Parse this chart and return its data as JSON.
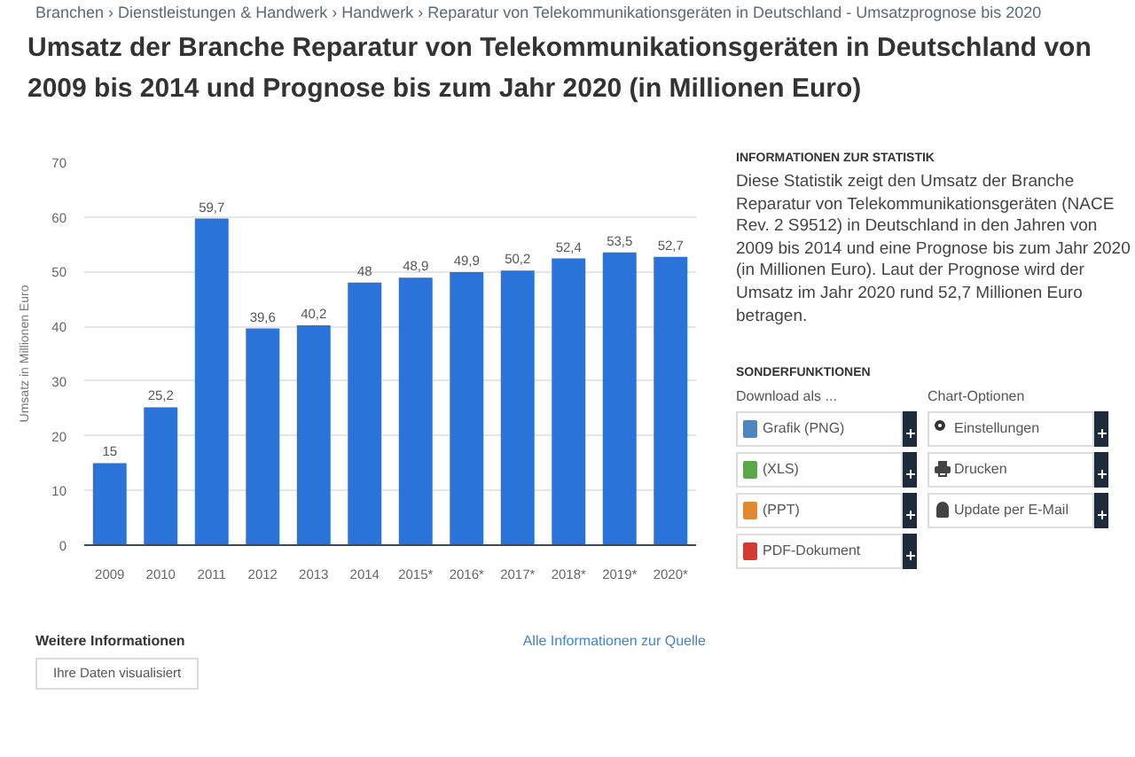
{
  "chart_data": {
    "type": "bar",
    "title": "Umsatz der Branche Reparatur von Telekommunikationsgeräten in Deutschland von 2009 bis 2014 und Prognose bis zum Jahr 2020 (in Millionen Euro)",
    "ylabel": "Umsatz in Millionen Euro",
    "categories": [
      "2009",
      "2010",
      "2011",
      "2012",
      "2013",
      "2014",
      "2015*",
      "2016*",
      "2017*",
      "2018*",
      "2019*",
      "2020*"
    ],
    "values": [
      15,
      25.2,
      59.7,
      39.6,
      40.2,
      48,
      48.9,
      49.9,
      50.2,
      52.4,
      53.5,
      52.7
    ],
    "value_labels": [
      "15",
      "25,2",
      "59,7",
      "39,6",
      "40,2",
      "48",
      "48,9",
      "49,9",
      "50,2",
      "52,4",
      "53,5",
      "52,7"
    ],
    "color": "#2a73d9",
    "ylim": [
      0,
      70
    ],
    "yticks": [
      0,
      10,
      20,
      30,
      40,
      50,
      60,
      70
    ],
    "grid": "y",
    "annotations": [
      "Branchen › Dienstleistungen & Handwerk › Handwerk › Reparatur von Telekommunikationsgeräten in Deutschland - Umsatzprognose bis 2020",
      "INFORMATIONEN ZUR STATISTIK",
      "Diese Statistik zeigt den Umsatz der Branche Reparatur von Telekommunikationsgeräten (NACE Rev. 2 S9512) in Deutschland in den Jahren von 2009 bis 2014 und eine Prognose bis zum Jahr 2020 (in Millionen Euro). Laut der Prognose wird der Umsatz im Jahr 2020 rund 52,7 Millionen Euro betragen.",
      "SONDERFUNKTIONEN",
      "Download als ...",
      "Grafik (PNG)",
      "(XLS)",
      "(PPT)",
      "PDF-Dokument",
      "Chart-Optionen",
      "Einstellungen",
      "Drucken",
      "Update per E-Mail",
      "Weitere Informationen",
      "Alle Informationen zur Quelle",
      "Ihre Daten visualisiert"
    ]
  }
}
